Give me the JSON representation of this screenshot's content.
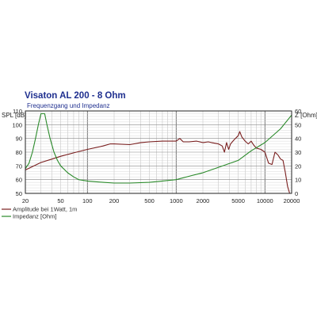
{
  "chart_data": {
    "type": "line",
    "title": "Visaton AL 200 - 8 Ohm",
    "subtitle": "Frequenzgang und Impedanz",
    "y_left_label": "SPL [dB]",
    "y_right_label": "Z [Ohm]",
    "x_scale": "log",
    "xlim": [
      20,
      20000
    ],
    "ylim_left": [
      50,
      110
    ],
    "ylim_right": [
      0,
      60
    ],
    "x_tick_labels": [
      "20",
      "50",
      "100",
      "200",
      "500",
      "1000",
      "2000",
      "5000",
      "10000",
      "20000"
    ],
    "y_left_tick_labels": [
      "50",
      "60",
      "70",
      "80",
      "90",
      "100",
      "110"
    ],
    "y_right_tick_labels": [
      "0",
      "10",
      "20",
      "30",
      "40",
      "50",
      "60"
    ],
    "grid": true,
    "legend_position": "bottom-left",
    "series": [
      {
        "name": "Amplitude bei 1Watt, 1m",
        "axis": "left",
        "color": "#7a1f1f",
        "points": [
          [
            20,
            67
          ],
          [
            25,
            70
          ],
          [
            30,
            72.5
          ],
          [
            40,
            75
          ],
          [
            50,
            77
          ],
          [
            70,
            79.5
          ],
          [
            100,
            82
          ],
          [
            150,
            84.5
          ],
          [
            180,
            86
          ],
          [
            200,
            86
          ],
          [
            300,
            85.5
          ],
          [
            400,
            87
          ],
          [
            500,
            87.5
          ],
          [
            700,
            88
          ],
          [
            900,
            88
          ],
          [
            1000,
            88
          ],
          [
            1100,
            90
          ],
          [
            1200,
            87.5
          ],
          [
            1400,
            87.5
          ],
          [
            1700,
            88
          ],
          [
            2000,
            87
          ],
          [
            2300,
            87.5
          ],
          [
            2500,
            87
          ],
          [
            3000,
            86
          ],
          [
            3300,
            84.5
          ],
          [
            3500,
            80
          ],
          [
            3700,
            87
          ],
          [
            3900,
            82
          ],
          [
            4100,
            86
          ],
          [
            4500,
            89
          ],
          [
            5000,
            92
          ],
          [
            5200,
            95
          ],
          [
            5500,
            91
          ],
          [
            6000,
            88
          ],
          [
            6500,
            86
          ],
          [
            7000,
            88
          ],
          [
            7500,
            85
          ],
          [
            8000,
            83
          ],
          [
            9000,
            82
          ],
          [
            10000,
            80
          ],
          [
            11000,
            72
          ],
          [
            12000,
            71
          ],
          [
            13000,
            80
          ],
          [
            14000,
            78
          ],
          [
            15000,
            75
          ],
          [
            16000,
            74
          ],
          [
            17000,
            65
          ],
          [
            18000,
            55
          ],
          [
            19000,
            50
          ]
        ]
      },
      {
        "name": "Impedanz [Ohm]",
        "axis": "right",
        "color": "#2a8a2a",
        "points": [
          [
            20,
            18
          ],
          [
            22,
            22
          ],
          [
            24,
            30
          ],
          [
            26,
            40
          ],
          [
            28,
            50
          ],
          [
            30,
            58
          ],
          [
            33,
            58
          ],
          [
            35,
            50
          ],
          [
            38,
            40
          ],
          [
            42,
            30
          ],
          [
            46,
            24
          ],
          [
            50,
            20
          ],
          [
            60,
            15
          ],
          [
            70,
            12
          ],
          [
            80,
            10
          ],
          [
            100,
            9
          ],
          [
            150,
            8
          ],
          [
            200,
            7.5
          ],
          [
            300,
            7.5
          ],
          [
            500,
            8
          ],
          [
            700,
            9
          ],
          [
            1000,
            10
          ],
          [
            1500,
            13
          ],
          [
            2000,
            15
          ],
          [
            3000,
            19
          ],
          [
            5000,
            24
          ],
          [
            7000,
            31
          ],
          [
            10000,
            37
          ],
          [
            15000,
            47
          ],
          [
            20000,
            57
          ]
        ]
      }
    ]
  }
}
